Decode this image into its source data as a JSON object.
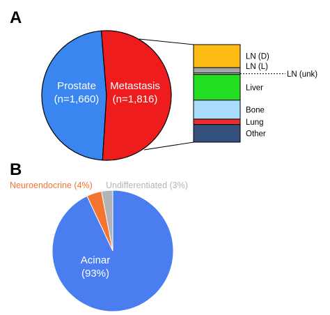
{
  "panels": {
    "a_letter": "A",
    "b_letter": "B"
  },
  "chart_data": [
    {
      "type": "pie",
      "panel": "A",
      "slices": [
        {
          "label": "Prostate",
          "count_label": "(n=1,660)",
          "value": 1660,
          "color": "#3a86f0"
        },
        {
          "label": "Metastasis",
          "count_label": "(n=1,816)",
          "value": 1816,
          "color": "#ee1c1c"
        }
      ],
      "breakdown": {
        "type": "stacked-bar",
        "of": "Metastasis",
        "segments": [
          {
            "label": "LN (D)",
            "value": 17,
            "color": "#fdbb14"
          },
          {
            "label": "LN (L)",
            "value": 4,
            "color": "#a3a5a7"
          },
          {
            "label": "LN (unk)",
            "value": 1,
            "color": "#ffffff"
          },
          {
            "label": "Liver",
            "value": 19,
            "color": "#22dd22"
          },
          {
            "label": "Bone",
            "value": 14,
            "color": "#a9dbfa"
          },
          {
            "label": "Lung",
            "value": 4,
            "color": "#ec2d2d"
          },
          {
            "label": "Other",
            "value": 13,
            "color": "#33507d"
          }
        ]
      }
    },
    {
      "type": "pie",
      "panel": "B",
      "slices": [
        {
          "label": "Acinar",
          "pct_label": "(93%)",
          "value": 93,
          "color": "#4a7ef0"
        },
        {
          "label": "Neuroendocrine (4%)",
          "value": 4,
          "color": "#f47430"
        },
        {
          "label": "Undifferentiated (3%)",
          "value": 3,
          "color": "#b2b5b7"
        }
      ]
    }
  ]
}
